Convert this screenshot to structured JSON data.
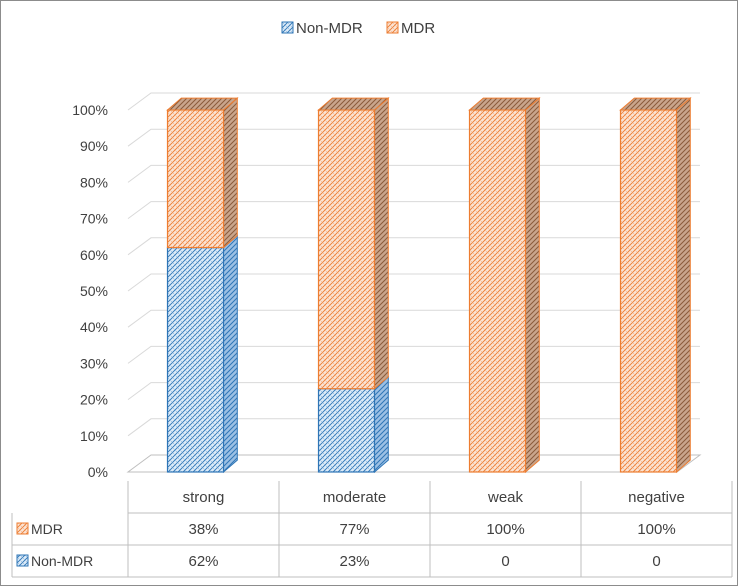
{
  "chart_data": {
    "type": "bar",
    "stacked": true,
    "percent": true,
    "three_d": true,
    "categories": [
      "strong",
      "moderate",
      "weak",
      "negative"
    ],
    "series": [
      {
        "name": "Non-MDR",
        "values": [
          62,
          23,
          0,
          0
        ],
        "table_values": [
          "62%",
          "23%",
          "0",
          "0"
        ]
      },
      {
        "name": "MDR",
        "values": [
          38,
          77,
          100,
          100
        ],
        "table_values": [
          "38%",
          "77%",
          "100%",
          "100%"
        ]
      }
    ],
    "y_ticks": [
      "0%",
      "10%",
      "20%",
      "30%",
      "40%",
      "50%",
      "60%",
      "70%",
      "80%",
      "90%",
      "100%"
    ],
    "ylim": [
      0,
      100
    ],
    "legend_position": "top",
    "data_table": true,
    "grid": true,
    "colors": {
      "Non-MDR": "#2e75b6",
      "MDR": "#ed7d31"
    }
  }
}
